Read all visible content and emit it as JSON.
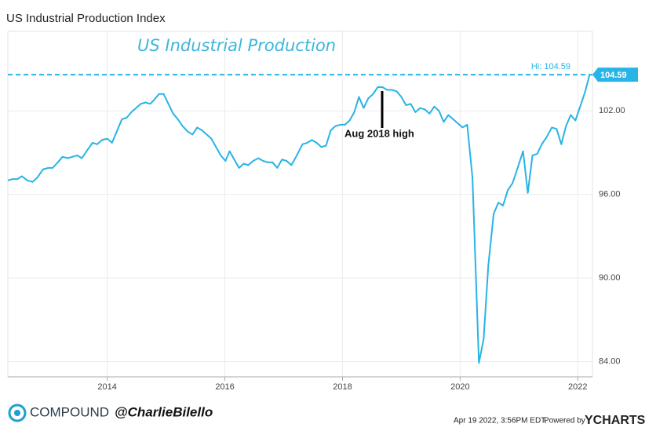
{
  "header": "US Industrial Production Index",
  "chart_data": {
    "type": "line",
    "title": "US Industrial Production",
    "x": [
      2012.31,
      2012.39,
      2012.47,
      2012.55,
      2012.64,
      2012.73,
      2012.81,
      2012.91,
      2013.0,
      2013.07,
      2013.16,
      2013.24,
      2013.33,
      2013.41,
      2013.49,
      2013.57,
      2013.65,
      2013.75,
      2013.83,
      2013.91,
      2014.0,
      2014.08,
      2014.16,
      2014.25,
      2014.33,
      2014.41,
      2014.49,
      2014.57,
      2014.65,
      2014.73,
      2014.8,
      2014.88,
      2014.96,
      2015.04,
      2015.12,
      2015.2,
      2015.28,
      2015.37,
      2015.45,
      2015.53,
      2015.61,
      2015.69,
      2015.77,
      2015.85,
      2015.93,
      2016.01,
      2016.08,
      2016.16,
      2016.24,
      2016.32,
      2016.4,
      2016.48,
      2016.57,
      2016.65,
      2016.73,
      2016.81,
      2016.89,
      2016.97,
      2017.05,
      2017.13,
      2017.21,
      2017.32,
      2017.4,
      2017.48,
      2017.56,
      2017.64,
      2017.72,
      2017.8,
      2017.88,
      2017.96,
      2018.04,
      2018.12,
      2018.2,
      2018.28,
      2018.36,
      2018.44,
      2018.52,
      2018.6,
      2018.68,
      2018.76,
      2018.84,
      2018.92,
      2019.0,
      2019.08,
      2019.16,
      2019.24,
      2019.32,
      2019.4,
      2019.48,
      2019.56,
      2019.64,
      2019.72,
      2019.8,
      2019.88,
      2019.96,
      2020.04,
      2020.12,
      2020.21,
      2020.32,
      2020.4,
      2020.48,
      2020.57,
      2020.65,
      2020.73,
      2020.81,
      2020.89,
      2020.97,
      2021.07,
      2021.15,
      2021.23,
      2021.31,
      2021.39,
      2021.47,
      2021.56,
      2021.64,
      2021.72,
      2021.8,
      2021.88,
      2021.96,
      2022.04,
      2022.12,
      2022.2
    ],
    "series": [
      {
        "name": "US Industrial Production Index",
        "color": "#27b4e6",
        "values": [
          97.0,
          97.1,
          97.1,
          97.3,
          97.0,
          96.9,
          97.2,
          97.8,
          97.9,
          97.9,
          98.3,
          98.7,
          98.6,
          98.7,
          98.8,
          98.6,
          99.1,
          99.7,
          99.6,
          99.9,
          100.0,
          99.7,
          100.5,
          101.4,
          101.5,
          101.9,
          102.2,
          102.5,
          102.6,
          102.5,
          102.8,
          103.2,
          103.2,
          102.5,
          101.8,
          101.4,
          100.9,
          100.5,
          100.3,
          100.8,
          100.6,
          100.3,
          100.0,
          99.4,
          98.8,
          98.4,
          99.1,
          98.5,
          97.9,
          98.2,
          98.1,
          98.4,
          98.6,
          98.4,
          98.3,
          98.3,
          97.9,
          98.5,
          98.4,
          98.1,
          98.7,
          99.6,
          99.7,
          99.9,
          99.7,
          99.4,
          99.5,
          100.6,
          100.9,
          101.0,
          101.0,
          101.3,
          101.9,
          103.0,
          102.2,
          102.9,
          103.2,
          103.7,
          103.7,
          103.5,
          103.5,
          103.4,
          103.0,
          102.4,
          102.5,
          101.9,
          102.2,
          102.1,
          101.8,
          102.3,
          102.0,
          101.2,
          101.7,
          101.4,
          101.1,
          100.8,
          101.0,
          97.2,
          83.9,
          85.6,
          90.9,
          94.6,
          95.4,
          95.2,
          96.3,
          96.8,
          97.8,
          99.1,
          96.1,
          98.8,
          98.9,
          99.6,
          100.1,
          100.8,
          100.7,
          99.6,
          100.9,
          101.7,
          101.3,
          102.3,
          103.3,
          104.59
        ]
      }
    ],
    "xlim": [
      2012.31,
      2022.25
    ],
    "xticks": [
      2014,
      2016,
      2018,
      2020,
      2022
    ],
    "ylim": [
      82.9,
      107.7
    ],
    "yticks": [
      {
        "value": 84,
        "label": "84.00"
      },
      {
        "value": 90,
        "label": "90.00"
      },
      {
        "value": 96,
        "label": "96.00"
      },
      {
        "value": 102,
        "label": "102.00"
      }
    ],
    "grid": true,
    "hi_line": 104.59,
    "hi_label": "Hi: 104.59",
    "annotation": "Aug 2018 high"
  },
  "footer": {
    "brand": "COMPOUND",
    "handle": "@CharlieBilello",
    "timestamp": "Apr 19 2022, 3:56PM EDT.",
    "powered": "Powered by",
    "provider": "YCHARTS"
  }
}
